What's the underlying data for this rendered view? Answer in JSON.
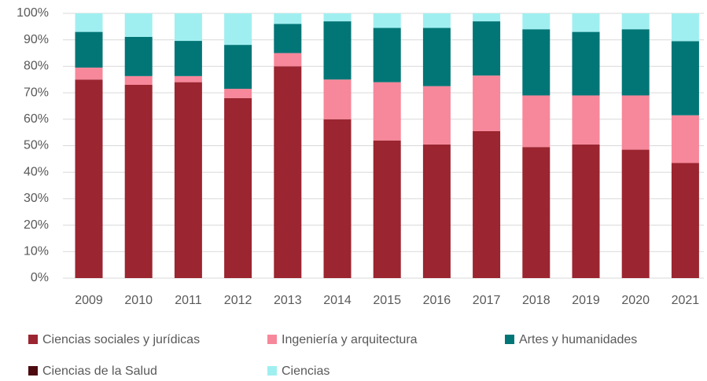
{
  "chart_data": {
    "type": "stacked_bar",
    "categories": [
      "2009",
      "2010",
      "2011",
      "2012",
      "2013",
      "2014",
      "2015",
      "2016",
      "2017",
      "2018",
      "2019",
      "2020",
      "2021"
    ],
    "series": [
      {
        "name": "Ciencias sociales y jurídicas",
        "color": "#9b2530",
        "values": [
          75,
          73,
          74,
          68,
          80,
          60,
          52,
          50.5,
          55.5,
          49.5,
          50.5,
          48.5,
          43.5
        ]
      },
      {
        "name": "Ingeniería y arquitectura",
        "color": "#f7879a",
        "values": [
          4.5,
          3.3,
          2.3,
          3.5,
          5,
          15,
          22,
          22,
          21,
          19.5,
          18.5,
          20.5,
          18
        ]
      },
      {
        "name": "Artes y humanidades",
        "color": "#027676",
        "values": [
          13.5,
          14.8,
          13.3,
          16.6,
          11,
          22,
          20.5,
          22,
          20.5,
          25,
          24,
          25,
          28
        ]
      },
      {
        "name": "Ciencias de la Salud",
        "color": "#4d0b10",
        "values": [
          0,
          0,
          0,
          0,
          0,
          0,
          0,
          0,
          0,
          0,
          0,
          0,
          0
        ]
      },
      {
        "name": "Ciencias",
        "color": "#a0eff0",
        "values": [
          7,
          8.9,
          10.4,
          11.9,
          4,
          3,
          5.5,
          5.5,
          3,
          6,
          7,
          6,
          10.5
        ]
      }
    ],
    "ylim": [
      0,
      100
    ],
    "yticks": [
      {
        "value": 0,
        "label": "0%"
      },
      {
        "value": 10,
        "label": "10%"
      },
      {
        "value": 20,
        "label": "20%"
      },
      {
        "value": 30,
        "label": "30%"
      },
      {
        "value": 40,
        "label": "40%"
      },
      {
        "value": 50,
        "label": "50%"
      },
      {
        "value": 60,
        "label": "60%"
      },
      {
        "value": 70,
        "label": "70%"
      },
      {
        "value": 80,
        "label": "80%"
      },
      {
        "value": 90,
        "label": "90%"
      },
      {
        "value": 100,
        "label": "100%"
      }
    ],
    "grid": true,
    "legend": "bottom"
  }
}
